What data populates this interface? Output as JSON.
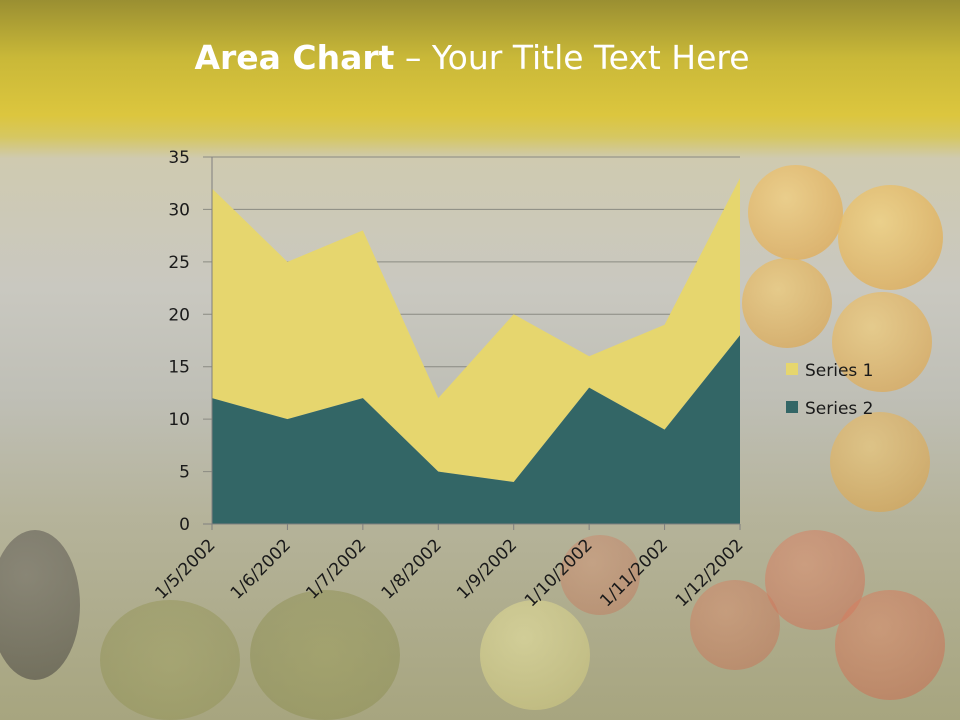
{
  "slide": {
    "title_bold": "Area Chart",
    "title_rest": " – Your Title Text Here"
  },
  "colors": {
    "series1": "#e6d66e",
    "series2": "#336666",
    "gridline": "#8a8a82"
  },
  "chart_data": {
    "type": "area",
    "stacked": true,
    "x": [
      "1/5/2002",
      "1/6/2002",
      "1/7/2002",
      "1/8/2002",
      "1/9/2002",
      "1/10/2002",
      "1/11/2002",
      "1/12/2002"
    ],
    "series": [
      {
        "name": "Series 1",
        "values": [
          20,
          15,
          16,
          7,
          16,
          3,
          10,
          15
        ],
        "color": "#e6d66e"
      },
      {
        "name": "Series 2",
        "values": [
          12,
          10,
          12,
          5,
          4,
          13,
          9,
          18
        ],
        "color": "#336666"
      }
    ],
    "yticks": [
      "0",
      "5",
      "10",
      "15",
      "20",
      "25",
      "30",
      "35"
    ],
    "ylim": [
      0,
      35
    ],
    "grid": true,
    "legend": "right"
  }
}
